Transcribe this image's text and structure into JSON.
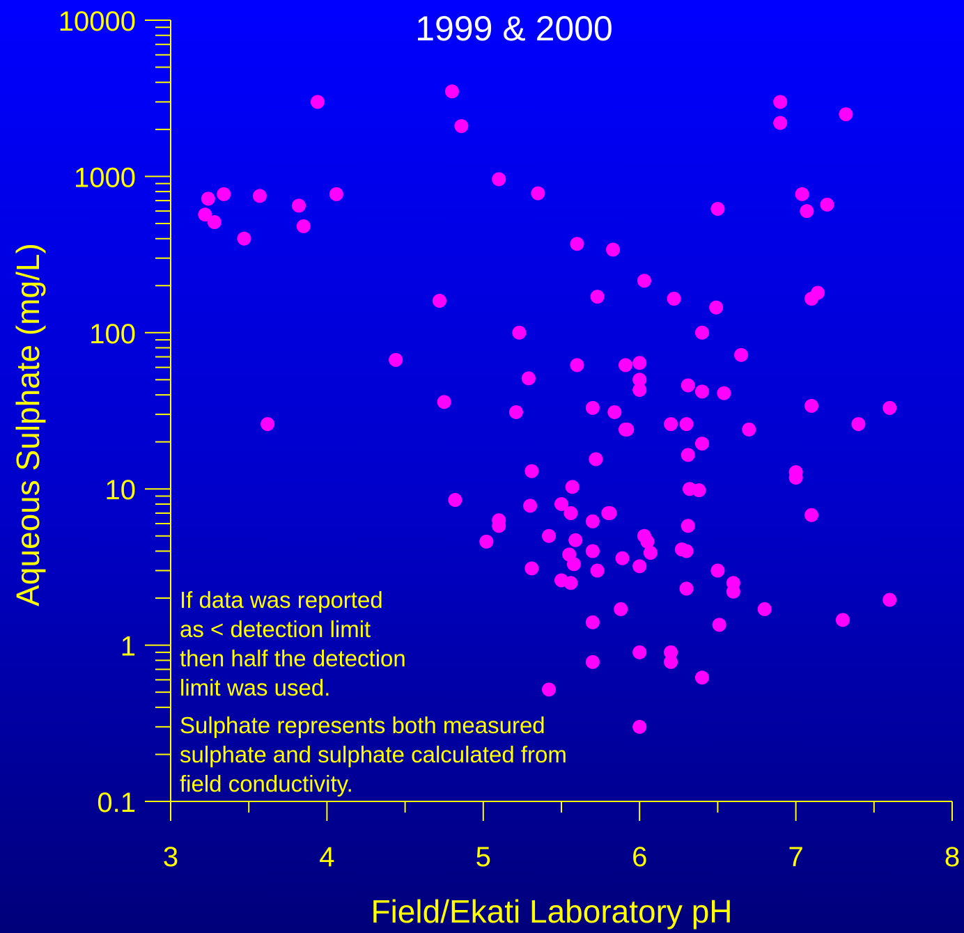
{
  "chart_data": {
    "type": "scatter",
    "title": "1999 & 2000",
    "xlabel": "Field/Ekati Laboratory pH",
    "ylabel": "Aqueous Sulphate (mg/L)",
    "xlim": [
      3,
      8
    ],
    "ylim": [
      0.1,
      10000
    ],
    "y_scale": "log",
    "grid": false,
    "x_ticks": [
      3,
      4,
      5,
      6,
      7,
      8
    ],
    "y_ticks": [
      0.1,
      1,
      10,
      100,
      1000,
      10000
    ],
    "x_tick_labels": [
      "3",
      "4",
      "5",
      "6",
      "7",
      "8"
    ],
    "y_tick_labels": [
      "0.1",
      "1",
      "10",
      "100",
      "1000",
      "10000"
    ],
    "annotations": [
      [
        "If data was reported",
        "as < detection limit",
        "then half the detection",
        "limit was used."
      ],
      [
        "Sulphate represents both measured",
        "sulphate and sulphate calculated from",
        "field conductivity."
      ]
    ],
    "colors": {
      "axis": "#ffff00",
      "text": "#ffffff",
      "marker": "#ff00ff"
    },
    "series": [
      {
        "x": [
          3.22,
          3.24,
          3.28,
          3.34,
          3.47,
          3.57,
          3.62,
          3.82,
          3.85,
          3.94,
          4.06,
          4.44,
          4.72,
          4.75,
          4.8,
          4.82,
          4.86,
          5.02,
          5.1,
          5.1,
          5.1,
          5.21,
          5.23,
          5.29,
          5.3,
          5.31,
          5.31,
          5.35,
          5.42,
          5.42,
          5.5,
          5.5,
          5.55,
          5.56,
          5.56,
          5.57,
          5.58,
          5.59,
          5.6,
          5.6,
          5.7,
          5.7,
          5.7,
          5.7,
          5.7,
          5.72,
          5.73,
          5.73,
          5.8,
          5.81,
          5.83,
          5.84,
          5.88,
          5.89,
          5.91,
          5.91,
          5.92,
          6.0,
          6.0,
          6.0,
          6.0,
          6.0,
          6.0,
          6.03,
          6.03,
          6.05,
          6.07,
          6.2,
          6.2,
          6.2,
          6.22,
          6.27,
          6.3,
          6.3,
          6.3,
          6.31,
          6.31,
          6.31,
          6.32,
          6.38,
          6.4,
          6.4,
          6.4,
          6.4,
          6.49,
          6.5,
          6.5,
          6.51,
          6.54,
          6.6,
          6.6,
          6.65,
          6.7,
          6.8,
          6.9,
          6.9,
          7.0,
          7.0,
          7.04,
          7.07,
          7.1,
          7.1,
          7.1,
          7.14,
          7.2,
          7.3,
          7.32,
          7.4,
          7.6,
          7.6
        ],
        "y": [
          570,
          720,
          510,
          770,
          400,
          750,
          26,
          650,
          480,
          3000,
          770,
          67,
          160,
          36,
          3500,
          8.5,
          2100,
          4.6,
          5.8,
          6.3,
          960,
          31,
          100,
          51,
          7.8,
          13,
          3.1,
          780,
          5,
          0.52,
          2.6,
          8,
          3.8,
          7,
          2.5,
          10.3,
          3.3,
          4.7,
          62,
          370,
          33,
          6.2,
          4,
          1.4,
          0.78,
          15.5,
          3,
          170,
          7,
          7,
          340,
          31,
          1.7,
          3.6,
          62,
          24,
          24,
          64,
          50,
          43,
          3.2,
          0.9,
          0.3,
          5,
          215,
          4.6,
          3.9,
          26,
          0.9,
          0.78,
          165,
          4.1,
          26,
          4,
          2.3,
          46,
          16.5,
          5.8,
          10,
          9.8,
          100,
          42,
          19.5,
          0.62,
          145,
          620,
          3,
          1.35,
          41,
          2.5,
          2.2,
          72,
          24,
          1.7,
          3000,
          2200,
          12.8,
          11.8,
          770,
          600,
          165,
          34,
          6.8,
          180,
          660,
          1.45,
          2500,
          26,
          33,
          1.95
        ]
      }
    ]
  }
}
